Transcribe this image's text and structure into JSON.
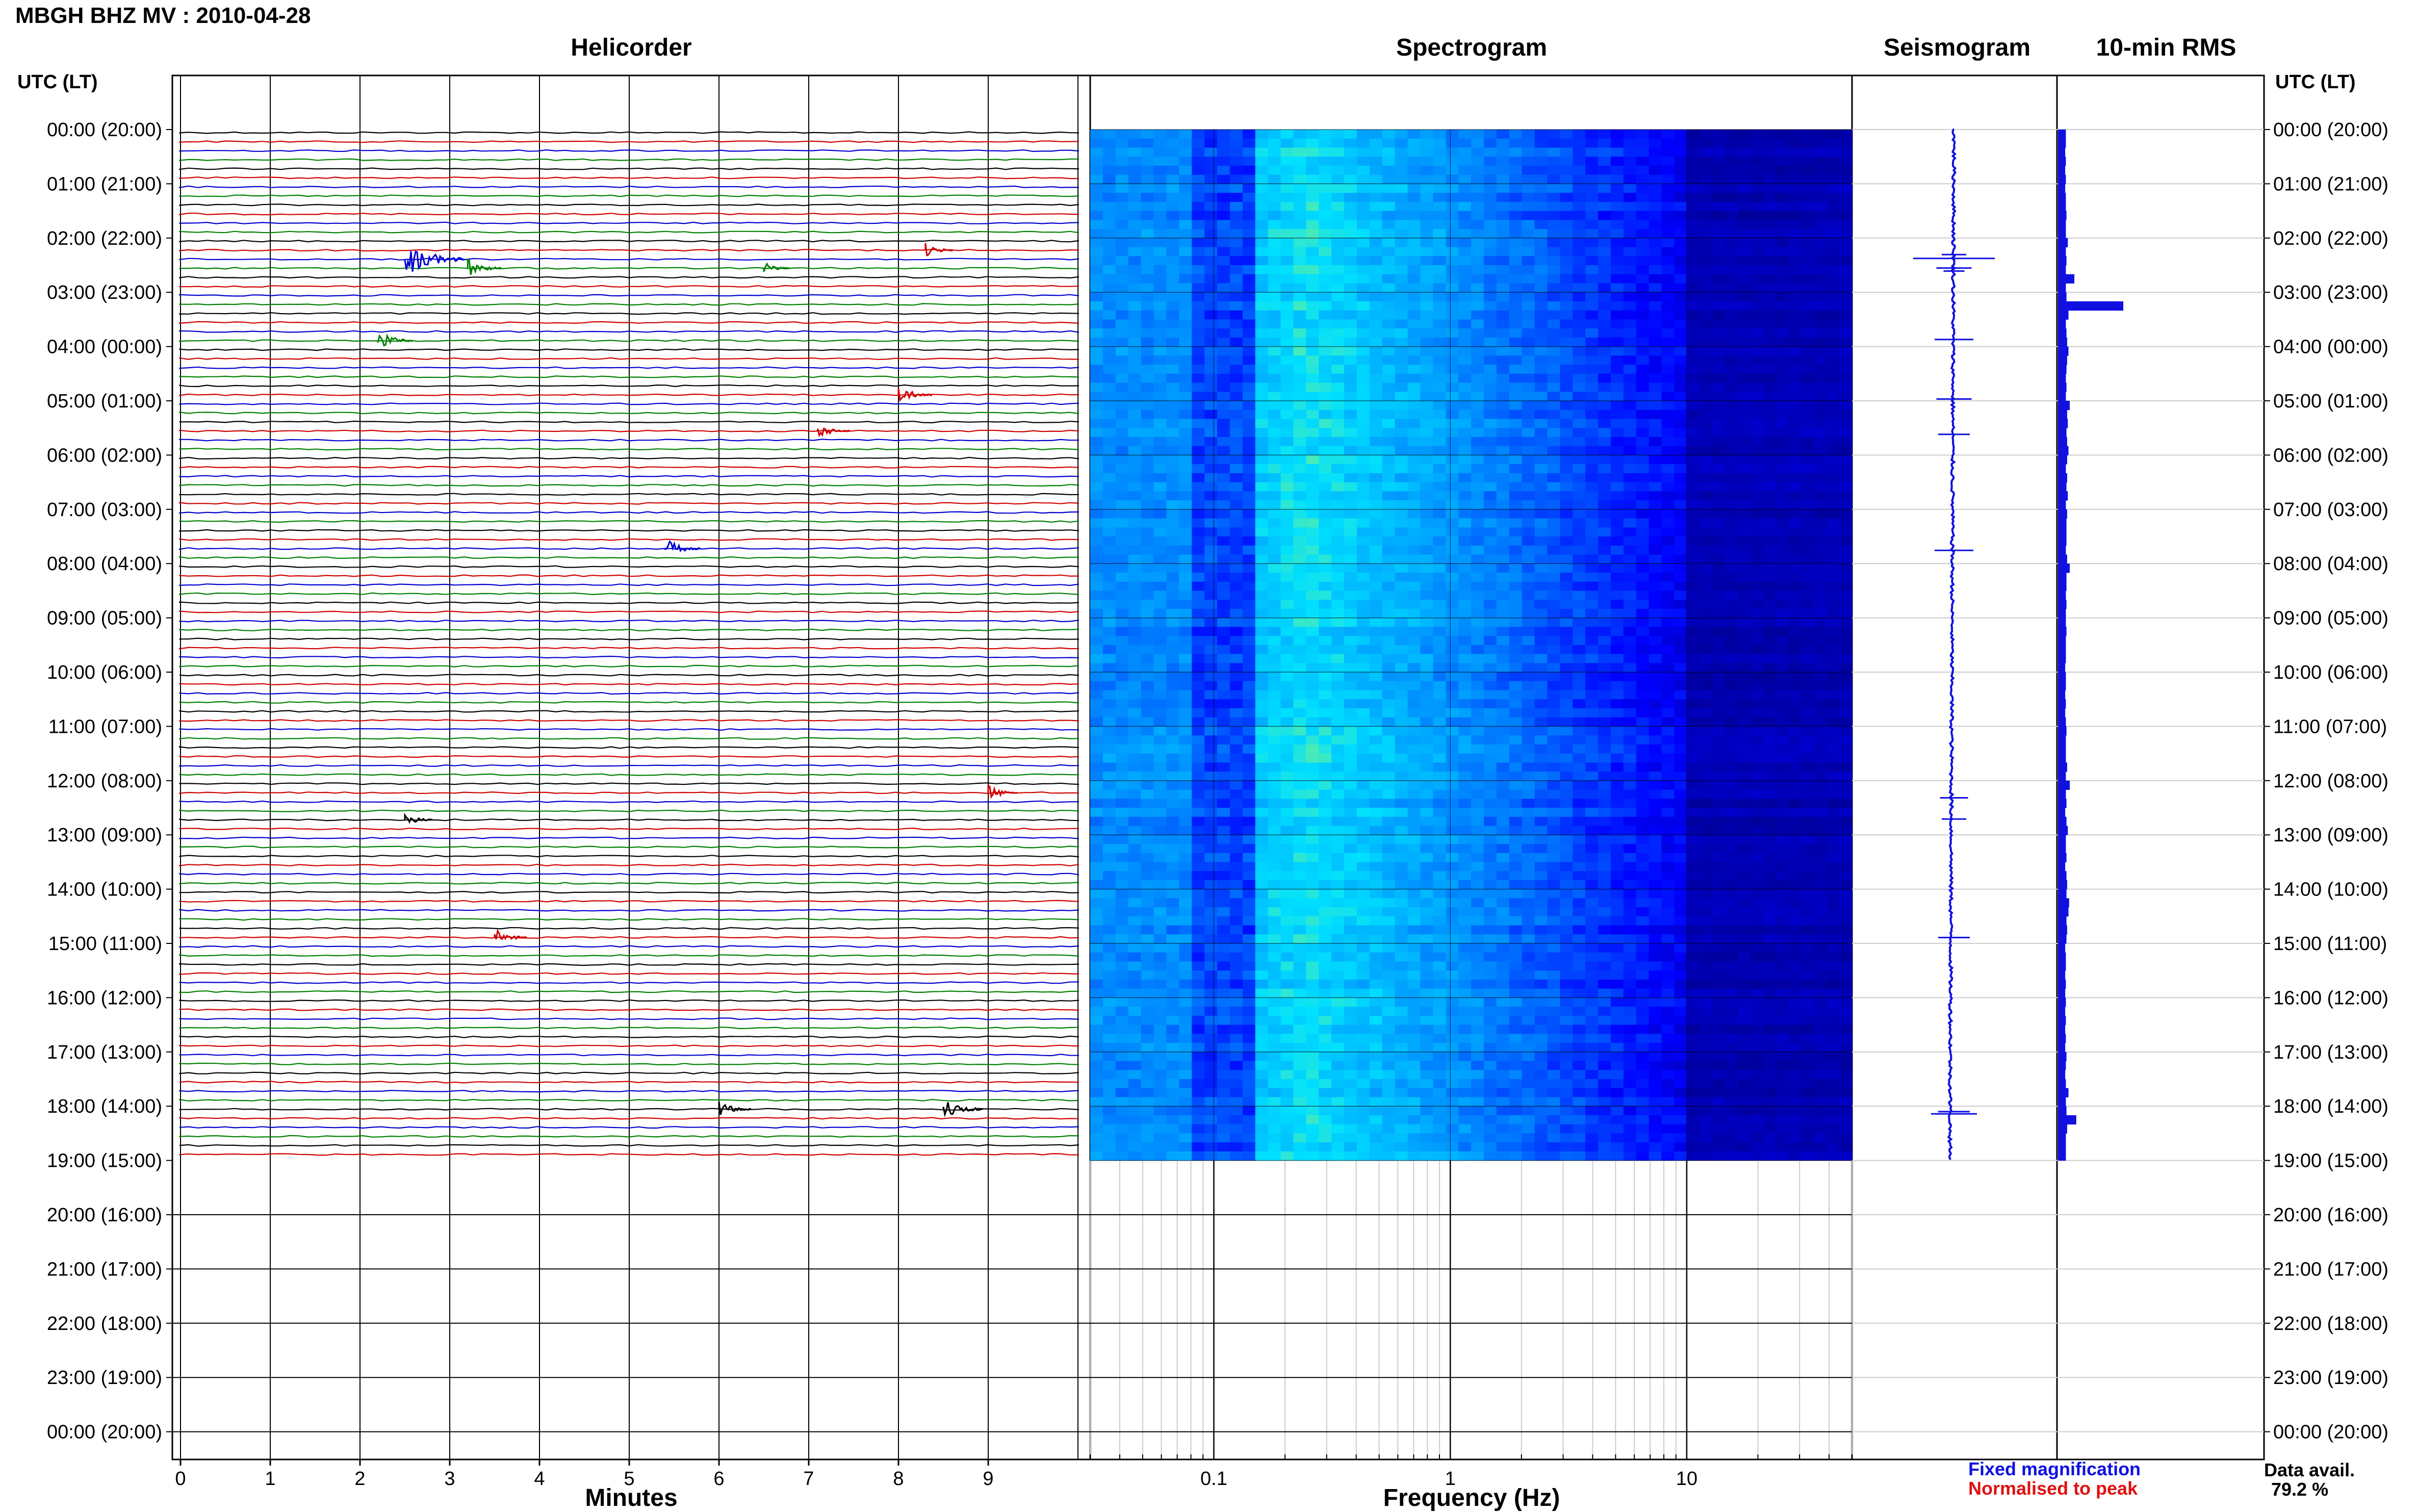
{
  "title": "MBGH BHZ MV : 2010-04-28",
  "panels": {
    "helicorder": "Helicorder",
    "spectrogram": "Spectrogram",
    "seismogram": "Seismogram",
    "rms": "10-min RMS"
  },
  "time_axis": {
    "header_left": "UTC (LT)",
    "header_right": "UTC (LT)",
    "labels": [
      "00:00 (20:00)",
      "01:00 (21:00)",
      "02:00 (22:00)",
      "03:00 (23:00)",
      "04:00 (00:00)",
      "05:00 (01:00)",
      "06:00 (02:00)",
      "07:00 (03:00)",
      "08:00 (04:00)",
      "09:00 (05:00)",
      "10:00 (06:00)",
      "11:00 (07:00)",
      "12:00 (08:00)",
      "13:00 (09:00)",
      "14:00 (10:00)",
      "15:00 (11:00)",
      "16:00 (12:00)",
      "17:00 (13:00)",
      "18:00 (14:00)",
      "19:00 (15:00)",
      "20:00 (16:00)",
      "21:00 (17:00)",
      "22:00 (18:00)",
      "23:00 (19:00)",
      "00:00 (20:00)"
    ]
  },
  "helicorder_axis": {
    "xlabel": "Minutes",
    "ticks": [
      "0",
      "1",
      "2",
      "3",
      "4",
      "5",
      "6",
      "7",
      "8",
      "9"
    ],
    "trace_colors": [
      "#000000",
      "#d00000",
      "#0000d0",
      "#008000"
    ]
  },
  "spectrogram_axis": {
    "xlabel": "Frequency (Hz)",
    "ticks": [
      "0.1",
      "1",
      "10"
    ],
    "colormap": [
      "#00008b",
      "#0000ff",
      "#0080ff",
      "#00e0ff",
      "#ccff33"
    ]
  },
  "legend": {
    "fixed": "Fixed magnification",
    "fixed_color": "#1010e0",
    "normalised": "Normalised to peak",
    "normalised_color": "#e01010"
  },
  "availability": {
    "label": "Data avail.",
    "value": "79.2 %"
  },
  "chart_data": {
    "type": "heatmap",
    "title": "MBGH BHZ MV : 2010-04-28",
    "date": "2010-04-28",
    "hours_utc": [
      "00:00",
      "01:00",
      "02:00",
      "03:00",
      "04:00",
      "05:00",
      "06:00",
      "07:00",
      "08:00",
      "09:00",
      "10:00",
      "11:00",
      "12:00",
      "13:00",
      "14:00",
      "15:00",
      "16:00",
      "17:00",
      "18:00"
    ],
    "data_end_utc": "19:00",
    "helicorder_minutes_range": [
      0,
      10
    ],
    "frequency_range_hz": [
      0.03,
      50
    ],
    "frequency_scale": "log",
    "spectrogram_peak_hz": 0.25,
    "events": [
      {
        "time": "02:20",
        "minute": 2.5,
        "amp": 1.0
      },
      {
        "time": "02:30",
        "minute": 3.2,
        "amp": 0.35
      },
      {
        "time": "02:30",
        "minute": 6.5,
        "amp": 0.15
      },
      {
        "time": "02:10",
        "minute": 8.3,
        "amp": 0.2
      },
      {
        "time": "03:50",
        "minute": 2.2,
        "amp": 0.4
      },
      {
        "time": "04:50",
        "minute": 8.0,
        "amp": 0.35
      },
      {
        "time": "05:30",
        "minute": 7.1,
        "amp": 0.3
      },
      {
        "time": "07:40",
        "minute": 5.4,
        "amp": 0.4
      },
      {
        "time": "12:10",
        "minute": 9.0,
        "amp": 0.25
      },
      {
        "time": "12:40",
        "minute": 2.5,
        "amp": 0.2
      },
      {
        "time": "14:50",
        "minute": 3.5,
        "amp": 0.3
      },
      {
        "time": "18:00",
        "minute": 8.5,
        "amp": 0.5
      },
      {
        "time": "18:00",
        "minute": 6.0,
        "amp": 0.3
      }
    ],
    "rms_10min_relative": [
      0.12,
      0.12,
      0.11,
      0.12,
      0.11,
      0.12,
      0.11,
      0.12,
      0.12,
      0.13,
      0.12,
      0.12,
      0.15,
      0.12,
      0.13,
      0.12,
      0.25,
      0.12,
      0.13,
      1.0,
      0.16,
      0.12,
      0.13,
      0.14,
      0.16,
      0.14,
      0.13,
      0.12,
      0.13,
      0.12,
      0.18,
      0.14,
      0.15,
      0.13,
      0.14,
      0.16,
      0.14,
      0.12,
      0.14,
      0.13,
      0.15,
      0.12,
      0.14,
      0.13,
      0.13,
      0.13,
      0.12,
      0.14,
      0.18,
      0.13,
      0.13,
      0.12,
      0.13,
      0.12,
      0.12,
      0.13,
      0.12,
      0.12,
      0.12,
      0.11,
      0.12,
      0.12,
      0.11,
      0.12,
      0.11,
      0.12,
      0.13,
      0.12,
      0.12,
      0.12,
      0.14,
      0.12,
      0.18,
      0.12,
      0.13,
      0.11,
      0.13,
      0.15,
      0.12,
      0.12,
      0.13,
      0.11,
      0.13,
      0.14,
      0.13,
      0.17,
      0.16,
      0.13,
      0.14,
      0.13,
      0.11,
      0.12,
      0.12,
      0.11,
      0.12,
      0.11,
      0.12,
      0.11,
      0.12,
      0.11,
      0.12,
      0.11,
      0.13,
      0.12,
      0.11,
      0.12,
      0.16,
      0.12,
      0.13,
      0.28,
      0.14,
      0.12,
      0.12,
      0.12
    ]
  }
}
